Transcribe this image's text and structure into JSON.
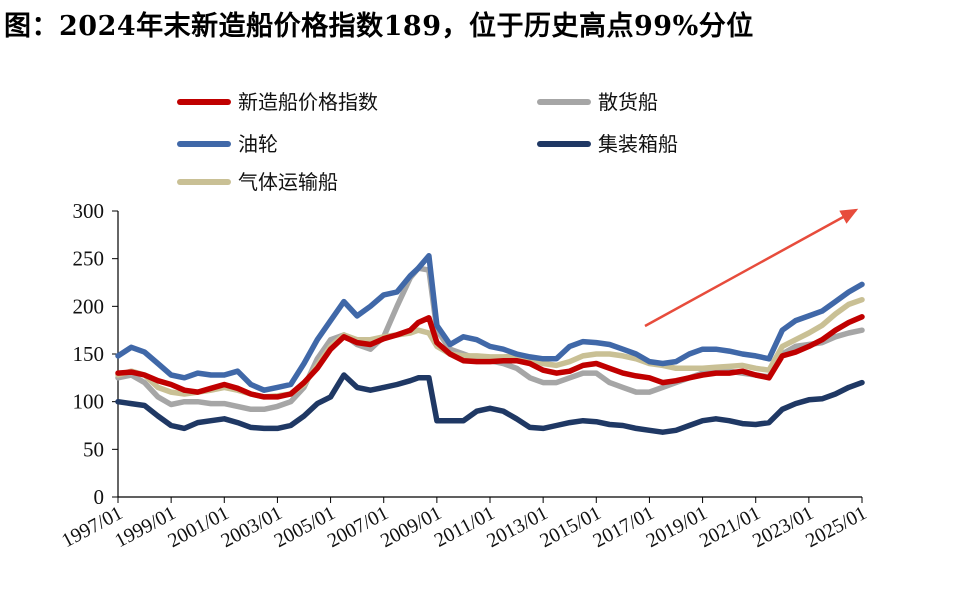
{
  "title": "图：2024年末新造船价格指数189，位于历史高点99%分位",
  "chart_data": {
    "type": "line",
    "title": "图：2024年末新造船价格指数189，位于历史高点99%分位",
    "xlabel": "",
    "ylabel": "",
    "xlim": [
      1997,
      2025
    ],
    "ylim": [
      0,
      300
    ],
    "yticks": [
      0,
      50,
      100,
      150,
      200,
      250,
      300
    ],
    "xticks": [
      "1997/01",
      "1999/01",
      "2001/01",
      "2003/01",
      "2005/01",
      "2007/01",
      "2009/01",
      "2011/01",
      "2013/01",
      "2015/01",
      "2017/01",
      "2019/01",
      "2021/01",
      "2023/01",
      "2025/01"
    ],
    "grid": false,
    "legend_position": "top",
    "annotation": "upward-trend-arrow",
    "series": [
      {
        "name": "新造船价格指数",
        "color": "#c00000",
        "x": [
          1997,
          1997.5,
          1998,
          1998.5,
          1999,
          1999.5,
          2000,
          2000.5,
          2001,
          2001.5,
          2002,
          2002.5,
          2003,
          2003.5,
          2004,
          2004.5,
          2005,
          2005.5,
          2006,
          2006.5,
          2007,
          2007.5,
          2008,
          2008.3,
          2008.7,
          2009,
          2009.5,
          2010,
          2010.5,
          2011,
          2011.5,
          2012,
          2012.5,
          2013,
          2013.5,
          2014,
          2014.5,
          2015,
          2015.5,
          2016,
          2016.5,
          2017,
          2017.5,
          2018,
          2018.5,
          2019,
          2019.5,
          2020,
          2020.5,
          2021,
          2021.5,
          2022,
          2022.5,
          2023,
          2023.5,
          2024,
          2024.5,
          2025
        ],
        "values": [
          130,
          131,
          128,
          122,
          118,
          112,
          110,
          114,
          118,
          114,
          108,
          105,
          105,
          108,
          120,
          135,
          155,
          168,
          162,
          160,
          166,
          170,
          175,
          183,
          188,
          162,
          150,
          143,
          142,
          142,
          143,
          143,
          140,
          133,
          130,
          132,
          138,
          140,
          135,
          130,
          127,
          125,
          120,
          122,
          125,
          128,
          130,
          130,
          132,
          128,
          125,
          148,
          152,
          158,
          165,
          175,
          183,
          189
        ]
      },
      {
        "name": "散货船",
        "color": "#a6a6a6",
        "x": [
          1997,
          1997.5,
          1998,
          1998.5,
          1999,
          1999.5,
          2000,
          2000.5,
          2001,
          2001.5,
          2002,
          2002.5,
          2003,
          2003.5,
          2004,
          2004.5,
          2005,
          2005.5,
          2006,
          2006.5,
          2007,
          2007.5,
          2008,
          2008.3,
          2008.7,
          2009,
          2009.5,
          2010,
          2010.5,
          2011,
          2011.5,
          2012,
          2012.5,
          2013,
          2013.5,
          2014,
          2014.5,
          2015,
          2015.5,
          2016,
          2016.5,
          2017,
          2017.5,
          2018,
          2018.5,
          2019,
          2019.5,
          2020,
          2020.5,
          2021,
          2021.5,
          2022,
          2022.5,
          2023,
          2023.5,
          2024,
          2024.5,
          2025
        ],
        "values": [
          125,
          128,
          120,
          105,
          97,
          100,
          100,
          98,
          98,
          95,
          92,
          92,
          95,
          100,
          115,
          145,
          165,
          170,
          160,
          155,
          168,
          200,
          230,
          240,
          238,
          175,
          155,
          150,
          145,
          143,
          140,
          135,
          125,
          120,
          120,
          125,
          130,
          130,
          120,
          115,
          110,
          110,
          115,
          120,
          125,
          130,
          132,
          132,
          130,
          128,
          126,
          150,
          158,
          160,
          162,
          168,
          172,
          175
        ]
      },
      {
        "name": "油轮",
        "color": "#4068a8",
        "x": [
          1997,
          1997.5,
          1998,
          1998.5,
          1999,
          1999.5,
          2000,
          2000.5,
          2001,
          2001.5,
          2002,
          2002.5,
          2003,
          2003.5,
          2004,
          2004.5,
          2005,
          2005.5,
          2006,
          2006.5,
          2007,
          2007.5,
          2008,
          2008.3,
          2008.7,
          2009,
          2009.5,
          2010,
          2010.5,
          2011,
          2011.5,
          2012,
          2012.5,
          2013,
          2013.5,
          2014,
          2014.5,
          2015,
          2015.5,
          2016,
          2016.5,
          2017,
          2017.5,
          2018,
          2018.5,
          2019,
          2019.5,
          2020,
          2020.5,
          2021,
          2021.5,
          2022,
          2022.5,
          2023,
          2023.5,
          2024,
          2024.5,
          2025
        ],
        "values": [
          148,
          157,
          152,
          140,
          128,
          125,
          130,
          128,
          128,
          132,
          118,
          112,
          115,
          118,
          140,
          165,
          185,
          205,
          190,
          200,
          212,
          215,
          232,
          240,
          253,
          180,
          160,
          168,
          165,
          158,
          155,
          150,
          147,
          145,
          145,
          158,
          163,
          162,
          160,
          155,
          150,
          142,
          140,
          142,
          150,
          155,
          155,
          153,
          150,
          148,
          145,
          175,
          185,
          190,
          195,
          205,
          215,
          223
        ]
      },
      {
        "name": "集装箱船",
        "color": "#1f3864",
        "x": [
          1997,
          1997.5,
          1998,
          1998.5,
          1999,
          1999.5,
          2000,
          2000.5,
          2001,
          2001.5,
          2002,
          2002.5,
          2003,
          2003.5,
          2004,
          2004.5,
          2005,
          2005.5,
          2006,
          2006.5,
          2007,
          2007.5,
          2008,
          2008.3,
          2008.7,
          2009,
          2009.5,
          2010,
          2010.5,
          2011,
          2011.5,
          2012,
          2012.5,
          2013,
          2013.5,
          2014,
          2014.5,
          2015,
          2015.5,
          2016,
          2016.5,
          2017,
          2017.5,
          2018,
          2018.5,
          2019,
          2019.5,
          2020,
          2020.5,
          2021,
          2021.5,
          2022,
          2022.5,
          2023,
          2023.5,
          2024,
          2024.5,
          2025
        ],
        "values": [
          100,
          98,
          96,
          85,
          75,
          72,
          78,
          80,
          82,
          78,
          73,
          72,
          72,
          75,
          85,
          98,
          105,
          128,
          115,
          112,
          115,
          118,
          122,
          125,
          125,
          80,
          80,
          80,
          90,
          93,
          90,
          82,
          73,
          72,
          75,
          78,
          80,
          79,
          76,
          75,
          72,
          70,
          68,
          70,
          75,
          80,
          82,
          80,
          77,
          76,
          78,
          92,
          98,
          102,
          103,
          108,
          115,
          120
        ]
      },
      {
        "name": "气体运输船",
        "color": "#c9c095",
        "x": [
          1997,
          1997.5,
          1998,
          1998.5,
          1999,
          1999.5,
          2000,
          2000.5,
          2001,
          2001.5,
          2002,
          2002.5,
          2003,
          2003.5,
          2004,
          2004.5,
          2005,
          2005.5,
          2006,
          2006.5,
          2007,
          2007.5,
          2008,
          2008.3,
          2008.7,
          2009,
          2009.5,
          2010,
          2010.5,
          2011,
          2011.5,
          2012,
          2012.5,
          2013,
          2013.5,
          2014,
          2014.5,
          2015,
          2015.5,
          2016,
          2016.5,
          2017,
          2017.5,
          2018,
          2018.5,
          2019,
          2019.5,
          2020,
          2020.5,
          2021,
          2021.5,
          2022,
          2022.5,
          2023,
          2023.5,
          2024,
          2024.5,
          2025
        ],
        "values": [
          128,
          132,
          128,
          115,
          110,
          108,
          110,
          112,
          115,
          112,
          108,
          105,
          106,
          108,
          118,
          138,
          158,
          170,
          165,
          165,
          168,
          170,
          172,
          175,
          172,
          158,
          150,
          148,
          148,
          147,
          147,
          148,
          145,
          140,
          138,
          142,
          148,
          150,
          150,
          148,
          145,
          140,
          138,
          135,
          135,
          135,
          136,
          137,
          138,
          135,
          133,
          158,
          165,
          172,
          180,
          192,
          202,
          207
        ]
      }
    ]
  }
}
